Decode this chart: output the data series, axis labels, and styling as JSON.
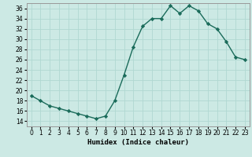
{
  "x": [
    0,
    1,
    2,
    3,
    4,
    5,
    6,
    7,
    8,
    9,
    10,
    11,
    12,
    13,
    14,
    15,
    16,
    17,
    18,
    19,
    20,
    21,
    22,
    23
  ],
  "y": [
    19,
    18,
    17,
    16.5,
    16,
    15.5,
    15,
    14.5,
    15,
    18,
    23,
    28.5,
    32.5,
    34,
    34,
    36.5,
    35,
    36.5,
    35.5,
    33,
    32,
    29.5,
    26.5,
    26
  ],
  "line_color": "#1a6b5a",
  "marker_color": "#1a6b5a",
  "bg_color": "#cce9e4",
  "grid_color": "#b0d8d2",
  "xlabel": "Humidex (Indice chaleur)",
  "ylim": [
    13,
    37
  ],
  "xlim": [
    -0.5,
    23.5
  ],
  "yticks": [
    14,
    16,
    18,
    20,
    22,
    24,
    26,
    28,
    30,
    32,
    34,
    36
  ],
  "xticks": [
    0,
    1,
    2,
    3,
    4,
    5,
    6,
    7,
    8,
    9,
    10,
    11,
    12,
    13,
    14,
    15,
    16,
    17,
    18,
    19,
    20,
    21,
    22,
    23
  ],
  "tick_fontsize": 5.5,
  "xlabel_fontsize": 6.5
}
